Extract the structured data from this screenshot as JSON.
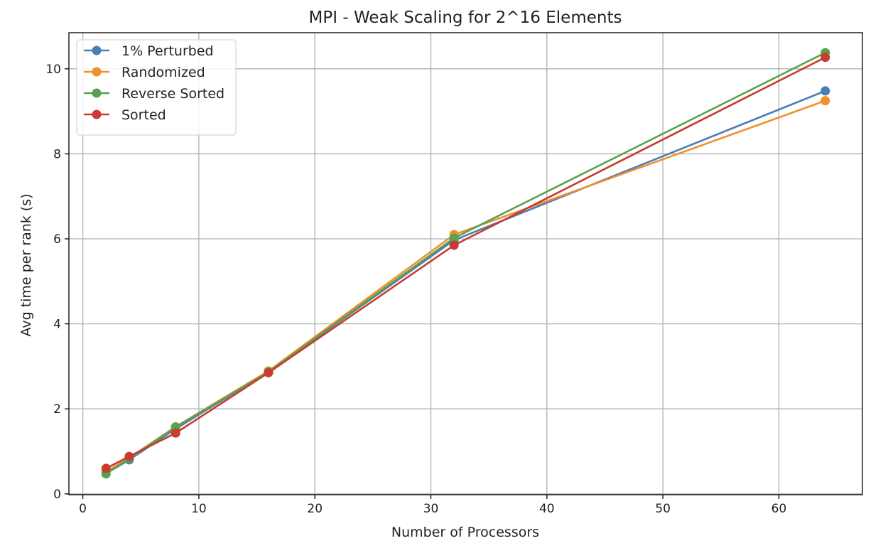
{
  "chart_data": {
    "type": "line",
    "title": "MPI - Weak Scaling for 2^16 Elements",
    "xlabel": "Number of Processors",
    "ylabel": "Avg time per rank (s)",
    "xlim": [
      -1.2,
      67.2
    ],
    "ylim": [
      -0.02,
      10.85
    ],
    "xticks": [
      0,
      10,
      20,
      30,
      40,
      50,
      60
    ],
    "yticks": [
      0,
      2,
      4,
      6,
      8,
      10
    ],
    "grid": true,
    "legend_position": "upper-left",
    "x": [
      2,
      4,
      8,
      16,
      32,
      64
    ],
    "series": [
      {
        "name": "1% Perturbed",
        "color": "#4a7fb5",
        "values": [
          0.48,
          0.8,
          1.53,
          2.87,
          5.97,
          9.48
        ]
      },
      {
        "name": "Randomized",
        "color": "#f28e2b",
        "values": [
          0.52,
          0.85,
          1.58,
          2.89,
          6.1,
          9.25
        ]
      },
      {
        "name": "Reverse Sorted",
        "color": "#59a14f",
        "values": [
          0.47,
          0.83,
          1.57,
          2.87,
          6.02,
          10.38
        ]
      },
      {
        "name": "Sorted",
        "color": "#c83c32",
        "values": [
          0.6,
          0.88,
          1.43,
          2.85,
          5.85,
          10.27
        ]
      }
    ]
  }
}
